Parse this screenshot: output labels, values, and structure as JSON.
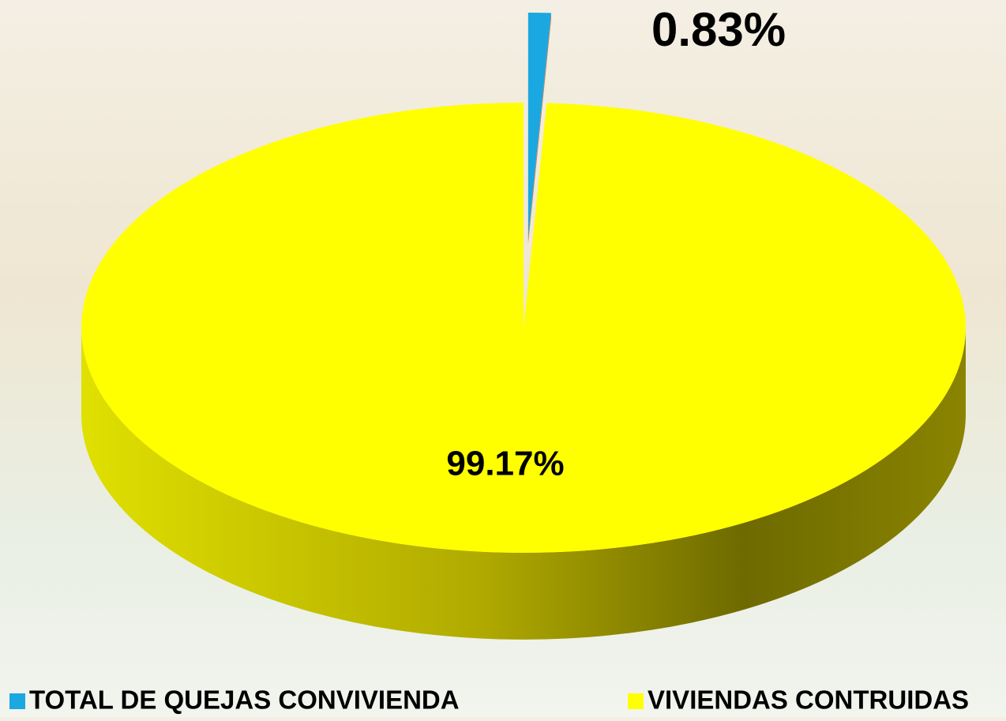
{
  "chart_data": {
    "type": "pie",
    "categories": [
      "TOTAL DE QUEJAS CONVIVIENDA",
      "VIVIENDAS CONTRUIDAS"
    ],
    "values": [
      0.83,
      99.17
    ],
    "value_labels": [
      "0.83%",
      "99.17%"
    ],
    "colors": [
      "#1ba8e0",
      "#ffff00"
    ],
    "legend": "bottom"
  }
}
